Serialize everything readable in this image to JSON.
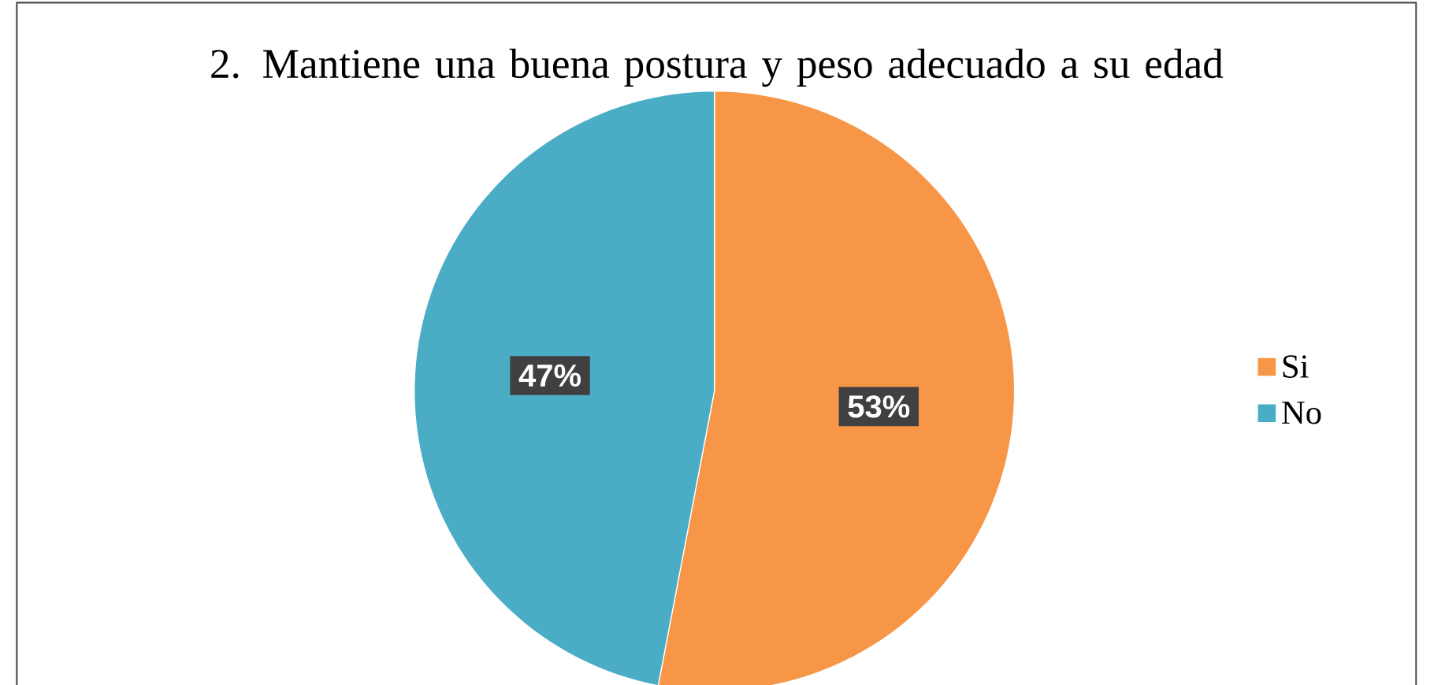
{
  "chart_data": {
    "type": "pie",
    "title": "2. Mantiene una buena postura y peso adecuado a su edad",
    "categories": [
      "Si",
      "No"
    ],
    "values": [
      53,
      47
    ],
    "colors": [
      "#f79646",
      "#4bacc6"
    ],
    "value_labels": [
      "53%",
      "47%"
    ],
    "legend": "right"
  }
}
